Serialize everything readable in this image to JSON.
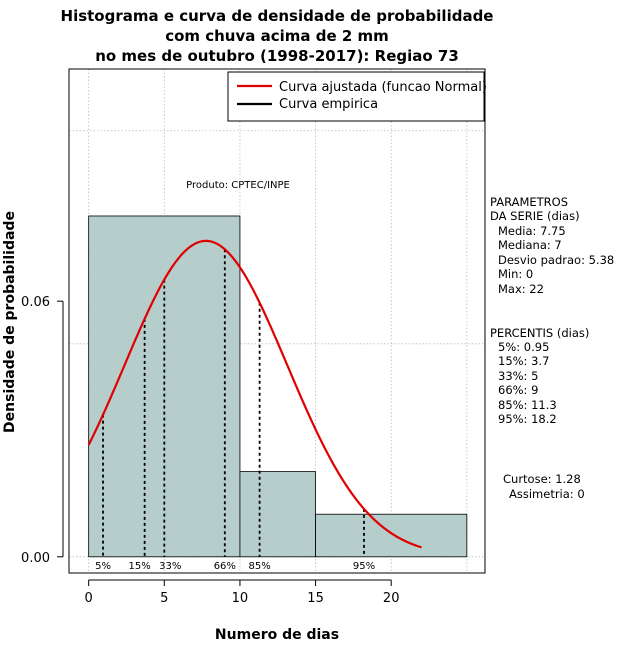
{
  "colors": {
    "bar_fill": "#b5cdcb",
    "curve": "#e00000",
    "grid": "#bbbbbb"
  },
  "chart_data": {
    "type": "bar",
    "title": [
      "Histograma e curva de densidade de probabilidade",
      "com chuva acima de 2 mm",
      "no mes de outubro (1998-2017): Regiao 73"
    ],
    "xlabel": "Numero de dias",
    "ylabel": "Densidade de probabilidade",
    "xlim": [
      -1.3,
      26.2
    ],
    "ylim": [
      -0.0038,
      0.1145
    ],
    "x_ticks": [
      0,
      5,
      10,
      15,
      20
    ],
    "y_ticks": [
      0.0,
      0.06
    ],
    "y_tick_labels": [
      "0.00",
      "0.06"
    ],
    "grid_x": [
      0,
      5,
      10,
      15,
      20,
      25
    ],
    "grid_y": [
      0.0,
      0.05,
      0.1
    ],
    "histogram": {
      "bins": [
        [
          0,
          10
        ],
        [
          10,
          15
        ],
        [
          15,
          25
        ]
      ],
      "densities": [
        0.08,
        0.02,
        0.01
      ]
    },
    "fitted_curve": {
      "name": "Curva ajustada (funcao Normal)",
      "distribution": "normal",
      "mean": 7.75,
      "sd": 5.38,
      "x_range": [
        0,
        22
      ]
    },
    "empirical_curve": {
      "name": "Curva empirica"
    },
    "percentiles": [
      {
        "label": "5%",
        "x": 0.95
      },
      {
        "label": "15%",
        "x": 3.7
      },
      {
        "label": "33%",
        "x": 5
      },
      {
        "label": "66%",
        "x": 9
      },
      {
        "label": "85%",
        "x": 11.3
      },
      {
        "label": "95%",
        "x": 18.2
      }
    ],
    "annotation": "Produto: CPTEC/INPE",
    "legend_placement": "top-right"
  },
  "sidebar": {
    "params_title": [
      "PARAMETROS",
      "DA SERIE (dias)"
    ],
    "params": [
      "Media: 7.75",
      "Mediana: 7",
      "Desvio padrao: 5.38",
      "Min: 0",
      "Max: 22"
    ],
    "percentis_title": "PERCENTIS (dias)",
    "percentis": [
      "5%: 0.95",
      "15%: 3.7",
      "33%: 5",
      "66%: 9",
      "85%: 11.3",
      "95%: 18.2"
    ],
    "curtose": "Curtose: 1.28",
    "assimetria": "Assimetria: 0"
  }
}
